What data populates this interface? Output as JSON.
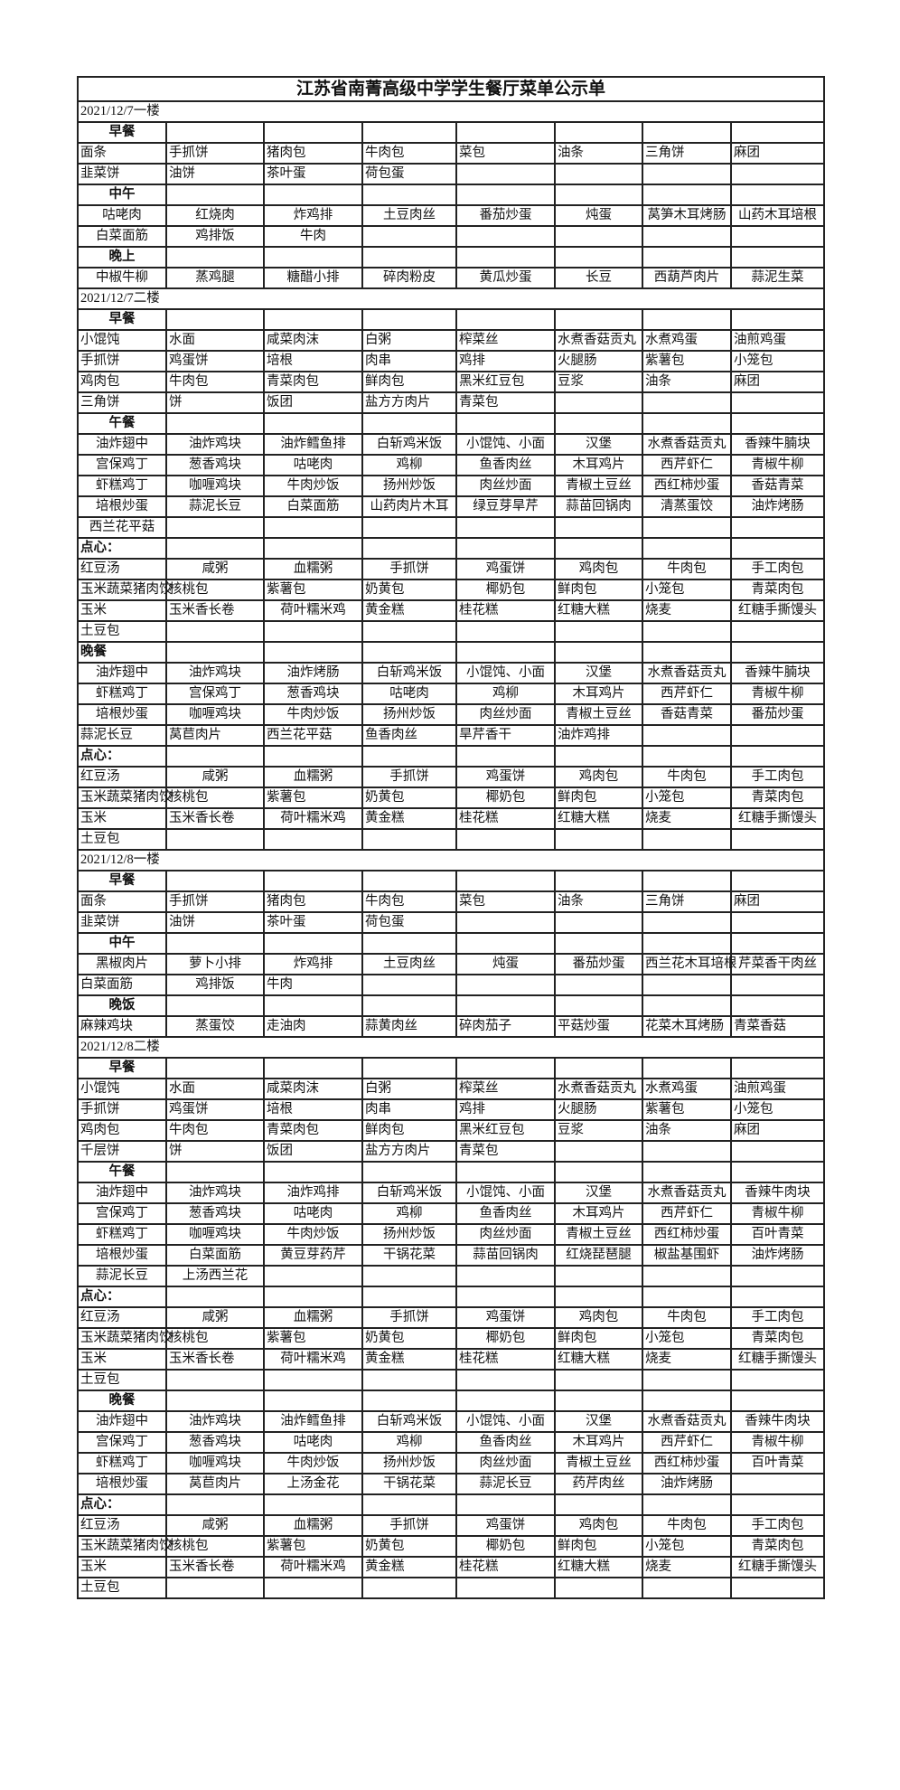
{
  "title": "江苏省南菁高级中学学生餐厅菜单公示单",
  "rows": [
    {
      "type": "date",
      "text": "2021/12/7一楼"
    },
    {
      "type": "header",
      "text": "早餐"
    },
    {
      "type": "items",
      "cells": [
        "面条",
        "手抓饼",
        "猪肉包",
        "牛肉包",
        "菜包",
        "油条",
        "三角饼",
        "麻团"
      ]
    },
    {
      "type": "items",
      "cells": [
        "韭菜饼",
        "油饼",
        "茶叶蛋",
        "荷包蛋",
        "",
        "",
        "",
        ""
      ]
    },
    {
      "type": "header",
      "text": "中午"
    },
    {
      "type": "items",
      "cells": [
        "咕咾肉",
        "红烧肉",
        "炸鸡排",
        "土豆肉丝",
        "番茄炒蛋",
        "炖蛋",
        "莴笋木耳烤肠",
        "山药木耳培根"
      ]
    },
    {
      "type": "items",
      "cells": [
        "白菜面筋",
        "鸡排饭",
        "牛肉",
        "",
        "",
        "",
        "",
        ""
      ]
    },
    {
      "type": "header",
      "text": "晚上"
    },
    {
      "type": "items",
      "cells": [
        "中椒牛柳",
        "蒸鸡腿",
        "糖醋小排",
        "碎肉粉皮",
        "黄瓜炒蛋",
        "长豆",
        "西葫芦肉片",
        "蒜泥生菜"
      ]
    },
    {
      "type": "date",
      "text": "2021/12/7二楼"
    },
    {
      "type": "header",
      "text": "早餐"
    },
    {
      "type": "items",
      "cells": [
        "小馄饨",
        "水面",
        "咸菜肉沫",
        "白粥",
        "榨菜丝",
        "水煮香菇贡丸",
        "水煮鸡蛋",
        "油煎鸡蛋"
      ]
    },
    {
      "type": "items",
      "cells": [
        "手抓饼",
        "鸡蛋饼",
        "培根",
        "肉串",
        "鸡排",
        "火腿肠",
        "紫薯包",
        "小笼包"
      ]
    },
    {
      "type": "items",
      "cells": [
        "鸡肉包",
        "牛肉包",
        "青菜肉包",
        "鲜肉包",
        "黑米红豆包",
        "豆浆",
        "油条",
        "麻团"
      ]
    },
    {
      "type": "items",
      "cells": [
        "三角饼",
        "饼",
        "饭团",
        "盐方方肉片",
        "青菜包",
        "",
        "",
        ""
      ]
    },
    {
      "type": "header",
      "text": "午餐"
    },
    {
      "type": "items",
      "cells": [
        "油炸翅中",
        "油炸鸡块",
        "油炸鳕鱼排",
        "白斩鸡米饭",
        "小馄饨、小面",
        "汉堡",
        "水煮香菇贡丸",
        "香辣牛腩块"
      ]
    },
    {
      "type": "items",
      "cells": [
        "宫保鸡丁",
        "葱香鸡块",
        "咕咾肉",
        "鸡柳",
        "鱼香肉丝",
        "木耳鸡片",
        "西芹虾仁",
        "青椒牛柳"
      ]
    },
    {
      "type": "items",
      "cells": [
        "虾糕鸡丁",
        "咖喱鸡块",
        "牛肉炒饭",
        "扬州炒饭",
        "肉丝炒面",
        "青椒土豆丝",
        "西红柿炒蛋",
        "香菇青菜"
      ]
    },
    {
      "type": "items",
      "cells": [
        "培根炒蛋",
        "蒜泥长豆",
        "白菜面筋",
        "山药肉片木耳",
        "绿豆芽旱芹",
        "蒜苗回锅肉",
        "清蒸蛋饺",
        "油炸烤肠"
      ]
    },
    {
      "type": "items",
      "cells": [
        "西兰花平菇",
        "",
        "",
        "",
        "",
        "",
        "",
        ""
      ]
    },
    {
      "type": "header",
      "text": "点心："
    },
    {
      "type": "items",
      "cells": [
        "红豆汤",
        "咸粥",
        "血糯粥",
        "手抓饼",
        "鸡蛋饼",
        "鸡肉包",
        "牛肉包",
        "手工肉包"
      ]
    },
    {
      "type": "items",
      "cells": [
        "玉米蔬菜猪肉饺",
        "核桃包",
        "紫薯包",
        "奶黄包",
        "椰奶包",
        "鲜肉包",
        "小笼包",
        "青菜肉包"
      ]
    },
    {
      "type": "items",
      "cells": [
        "玉米",
        "玉米香长卷",
        "荷叶糯米鸡",
        "黄金糕",
        "桂花糕",
        "红糖大糕",
        "烧麦",
        "红糖手撕馒头"
      ]
    },
    {
      "type": "items",
      "cells": [
        "土豆包",
        "",
        "",
        "",
        "",
        "",
        "",
        ""
      ]
    },
    {
      "type": "header",
      "text": "晚餐"
    },
    {
      "type": "items",
      "cells": [
        "油炸翅中",
        "油炸鸡块",
        "油炸烤肠",
        "白斩鸡米饭",
        "小馄饨、小面",
        "汉堡",
        "水煮香菇贡丸",
        "香辣牛腩块"
      ]
    },
    {
      "type": "items",
      "cells": [
        "虾糕鸡丁",
        "宫保鸡丁",
        "葱香鸡块",
        "咕咾肉",
        "鸡柳",
        "木耳鸡片",
        "西芹虾仁",
        "青椒牛柳"
      ]
    },
    {
      "type": "items",
      "cells": [
        "培根炒蛋",
        "咖喱鸡块",
        "牛肉炒饭",
        "扬州炒饭",
        "肉丝炒面",
        "青椒土豆丝",
        "香菇青菜",
        "番茄炒蛋"
      ]
    },
    {
      "type": "items",
      "cells": [
        "蒜泥长豆",
        "莴苣肉片",
        "西兰花平菇",
        "鱼香肉丝",
        "旱芹香干",
        "油炸鸡排",
        "",
        ""
      ]
    },
    {
      "type": "header",
      "text": "点心："
    },
    {
      "type": "items",
      "cells": [
        "红豆汤",
        "咸粥",
        "血糯粥",
        "手抓饼",
        "鸡蛋饼",
        "鸡肉包",
        "牛肉包",
        "手工肉包"
      ]
    },
    {
      "type": "items",
      "cells": [
        "玉米蔬菜猪肉饺",
        "核桃包",
        "紫薯包",
        "奶黄包",
        "椰奶包",
        "鲜肉包",
        "小笼包",
        "青菜肉包"
      ]
    },
    {
      "type": "items",
      "cells": [
        "玉米",
        "玉米香长卷",
        "荷叶糯米鸡",
        "黄金糕",
        "桂花糕",
        "红糖大糕",
        "烧麦",
        "红糖手撕馒头"
      ]
    },
    {
      "type": "items",
      "cells": [
        "土豆包",
        "",
        "",
        "",
        "",
        "",
        "",
        ""
      ]
    },
    {
      "type": "date",
      "text": "2021/12/8一楼"
    },
    {
      "type": "header",
      "text": "早餐"
    },
    {
      "type": "items",
      "cells": [
        "面条",
        "手抓饼",
        "猪肉包",
        "牛肉包",
        "菜包",
        "油条",
        "三角饼",
        "麻团"
      ]
    },
    {
      "type": "items",
      "cells": [
        "韭菜饼",
        "油饼",
        "茶叶蛋",
        "荷包蛋",
        "",
        "",
        "",
        ""
      ]
    },
    {
      "type": "header",
      "text": "中午"
    },
    {
      "type": "items",
      "cells": [
        "黑椒肉片",
        "萝卜小排",
        "炸鸡排",
        "土豆肉丝",
        "炖蛋",
        "番茄炒蛋",
        "西兰花木耳培根",
        "芹菜香干肉丝"
      ]
    },
    {
      "type": "items",
      "cells": [
        "白菜面筋",
        "鸡排饭",
        "牛肉",
        "",
        "",
        "",
        "",
        ""
      ]
    },
    {
      "type": "header",
      "text": "晚饭"
    },
    {
      "type": "items",
      "cells": [
        "麻辣鸡块",
        "蒸蛋饺",
        "走油肉",
        "蒜黄肉丝",
        "碎肉茄子",
        "平菇炒蛋",
        "花菜木耳烤肠",
        "青菜香菇"
      ]
    },
    {
      "type": "date",
      "text": "2021/12/8二楼"
    },
    {
      "type": "header",
      "text": "早餐"
    },
    {
      "type": "items",
      "cells": [
        "小馄饨",
        "水面",
        "咸菜肉沫",
        "白粥",
        "榨菜丝",
        "水煮香菇贡丸",
        "水煮鸡蛋",
        "油煎鸡蛋"
      ]
    },
    {
      "type": "items",
      "cells": [
        "手抓饼",
        "鸡蛋饼",
        "培根",
        "肉串",
        "鸡排",
        "火腿肠",
        "紫薯包",
        "小笼包"
      ]
    },
    {
      "type": "items",
      "cells": [
        "鸡肉包",
        "牛肉包",
        "青菜肉包",
        "鲜肉包",
        "黑米红豆包",
        "豆浆",
        "油条",
        "麻团"
      ]
    },
    {
      "type": "items",
      "cells": [
        "千层饼",
        "饼",
        "饭团",
        "盐方方肉片",
        "青菜包",
        "",
        "",
        ""
      ]
    },
    {
      "type": "header",
      "text": "午餐"
    },
    {
      "type": "items",
      "cells": [
        "油炸翅中",
        "油炸鸡块",
        "油炸鸡排",
        "白斩鸡米饭",
        "小馄饨、小面",
        "汉堡",
        "水煮香菇贡丸",
        "香辣牛肉块"
      ]
    },
    {
      "type": "items",
      "cells": [
        "宫保鸡丁",
        "葱香鸡块",
        "咕咾肉",
        "鸡柳",
        "鱼香肉丝",
        "木耳鸡片",
        "西芹虾仁",
        "青椒牛柳"
      ]
    },
    {
      "type": "items",
      "cells": [
        "虾糕鸡丁",
        "咖喱鸡块",
        "牛肉炒饭",
        "扬州炒饭",
        "肉丝炒面",
        "青椒土豆丝",
        "西红柿炒蛋",
        "百叶青菜"
      ]
    },
    {
      "type": "items",
      "cells": [
        "培根炒蛋",
        "白菜面筋",
        "黄豆芽药芹",
        "干锅花菜",
        "蒜苗回锅肉",
        "红烧琵琶腿",
        "椒盐基围虾",
        "油炸烤肠"
      ]
    },
    {
      "type": "items",
      "cells": [
        "蒜泥长豆",
        "上汤西兰花",
        "",
        "",
        "",
        "",
        "",
        ""
      ]
    },
    {
      "type": "header",
      "text": "点心："
    },
    {
      "type": "items",
      "cells": [
        "红豆汤",
        "咸粥",
        "血糯粥",
        "手抓饼",
        "鸡蛋饼",
        "鸡肉包",
        "牛肉包",
        "手工肉包"
      ]
    },
    {
      "type": "items",
      "cells": [
        "玉米蔬菜猪肉饺",
        "核桃包",
        "紫薯包",
        "奶黄包",
        "椰奶包",
        "鲜肉包",
        "小笼包",
        "青菜肉包"
      ]
    },
    {
      "type": "items",
      "cells": [
        "玉米",
        "玉米香长卷",
        "荷叶糯米鸡",
        "黄金糕",
        "桂花糕",
        "红糖大糕",
        "烧麦",
        "红糖手撕馒头"
      ]
    },
    {
      "type": "items",
      "cells": [
        "土豆包",
        "",
        "",
        "",
        "",
        "",
        "",
        ""
      ]
    },
    {
      "type": "header",
      "text": "晚餐"
    },
    {
      "type": "items",
      "cells": [
        "油炸翅中",
        "油炸鸡块",
        "油炸鳕鱼排",
        "白斩鸡米饭",
        "小馄饨、小面",
        "汉堡",
        "水煮香菇贡丸",
        "香辣牛肉块"
      ]
    },
    {
      "type": "items",
      "cells": [
        "宫保鸡丁",
        "葱香鸡块",
        "咕咾肉",
        "鸡柳",
        "鱼香肉丝",
        "木耳鸡片",
        "西芹虾仁",
        "青椒牛柳"
      ]
    },
    {
      "type": "items",
      "cells": [
        "虾糕鸡丁",
        "咖喱鸡块",
        "牛肉炒饭",
        "扬州炒饭",
        "肉丝炒面",
        "青椒土豆丝",
        "西红柿炒蛋",
        "百叶青菜"
      ]
    },
    {
      "type": "items",
      "cells": [
        "培根炒蛋",
        "莴苣肉片",
        "上汤金花",
        "干锅花菜",
        "蒜泥长豆",
        "药芹肉丝",
        "油炸烤肠",
        ""
      ]
    },
    {
      "type": "header",
      "text": "点心："
    },
    {
      "type": "items",
      "cells": [
        "红豆汤",
        "咸粥",
        "血糯粥",
        "手抓饼",
        "鸡蛋饼",
        "鸡肉包",
        "牛肉包",
        "手工肉包"
      ]
    },
    {
      "type": "items",
      "cells": [
        "玉米蔬菜猪肉饺",
        "核桃包",
        "紫薯包",
        "奶黄包",
        "椰奶包",
        "鲜肉包",
        "小笼包",
        "青菜肉包"
      ]
    },
    {
      "type": "items",
      "cells": [
        "玉米",
        "玉米香长卷",
        "荷叶糯米鸡",
        "黄金糕",
        "桂花糕",
        "红糖大糕",
        "烧麦",
        "红糖手撕馒头"
      ]
    },
    {
      "type": "items",
      "cells": [
        "土豆包",
        "",
        "",
        "",
        "",
        "",
        "",
        ""
      ]
    }
  ]
}
